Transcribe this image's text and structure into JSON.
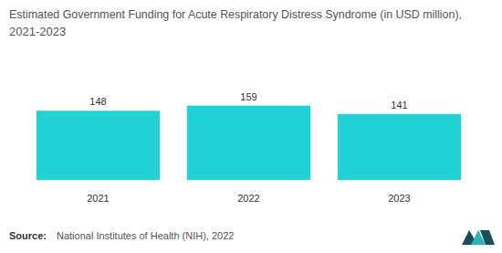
{
  "chart_data": {
    "type": "bar",
    "title": "Estimated Government Funding for Acute Respiratory Distress Syndrome (in USD million), 2021-2023",
    "categories": [
      "2021",
      "2022",
      "2023"
    ],
    "values": [
      148,
      159,
      141
    ],
    "color": "#22d3d6",
    "ylim": [
      0,
      170
    ],
    "data_labels": true,
    "tick_labels": "x",
    "source_label": "Source:",
    "source": "National Institutes of Health (NIH), 2022"
  }
}
